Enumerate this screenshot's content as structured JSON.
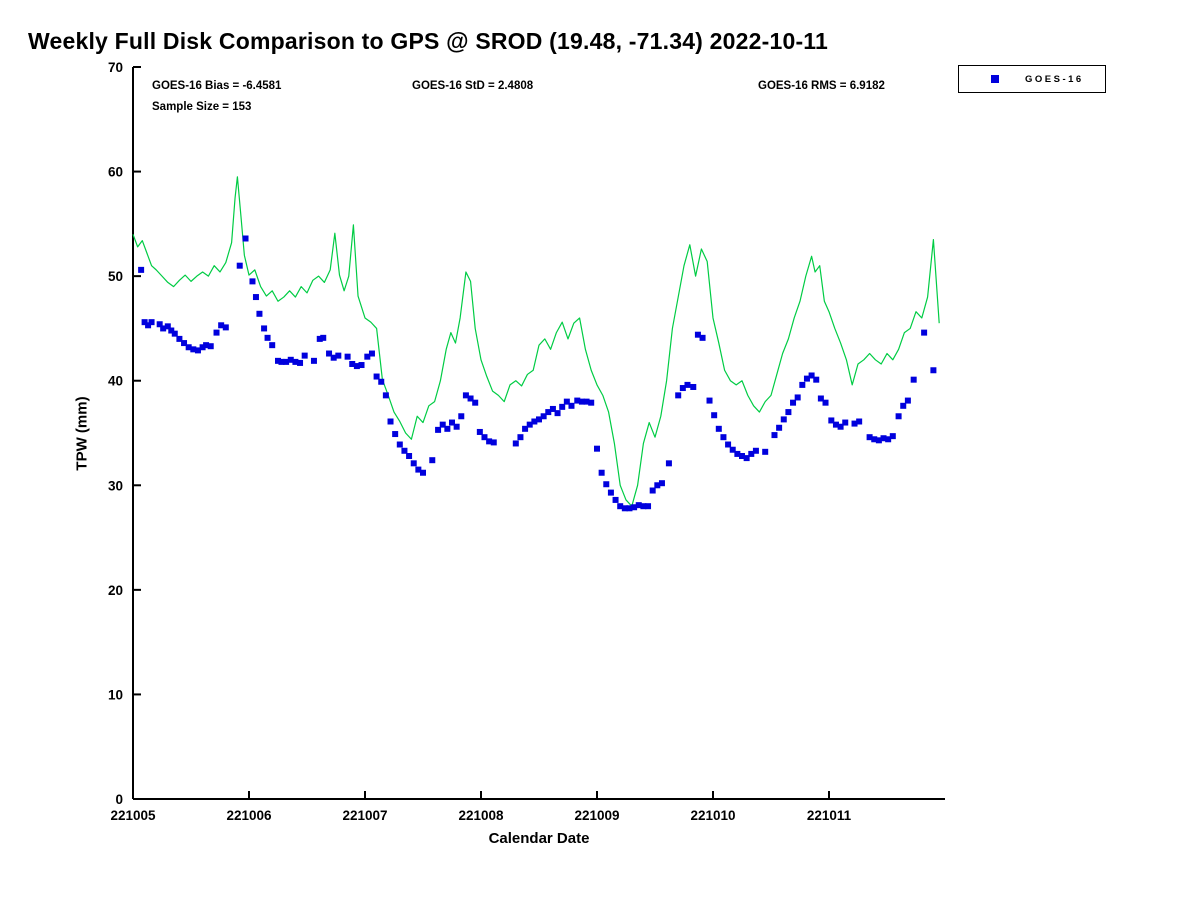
{
  "title": "Weekly Full Disk Comparison to GPS @ SROD (19.48, -71.34) 2022-10-11",
  "annotations": {
    "bias": "GOES-16 Bias = -6.4581",
    "std": "GOES-16 StD = 2.4808",
    "rms": "GOES-16 RMS = 6.9182",
    "sample": "Sample Size = 153"
  },
  "legend": {
    "entries": [
      {
        "label": "GOES-16",
        "marker": "filled-square",
        "marker_color": "#0000dd"
      }
    ],
    "position": "top-right-outside"
  },
  "colors": {
    "gps_line": "#00cc44",
    "goes16_marker": "#0000dd",
    "axis": "#000000",
    "background": "#ffffff"
  },
  "chart_data": {
    "type": "line",
    "title": "Weekly Full Disk Comparison to GPS @ SROD (19.48, -71.34) 2022-10-11",
    "xlabel": "Calendar Date",
    "ylabel": "TPW (mm)",
    "xlim": [
      221005,
      221012
    ],
    "ylim": [
      0,
      70
    ],
    "xticks": [
      221005,
      221006,
      221007,
      221008,
      221009,
      221010,
      221011
    ],
    "yticks": [
      0,
      10,
      20,
      30,
      40,
      50,
      60,
      70
    ],
    "grid": false,
    "legend_position": "top-right-outside",
    "stats": {
      "bias": -6.4581,
      "std": 2.4808,
      "rms": 6.9182,
      "sample_size": 153
    },
    "series": [
      {
        "name": "GPS",
        "type": "line",
        "color": "#00cc44",
        "x": [
          221005.0,
          221005.04,
          221005.08,
          221005.12,
          221005.16,
          221005.2,
          221005.25,
          221005.3,
          221005.35,
          221005.4,
          221005.45,
          221005.5,
          221005.55,
          221005.6,
          221005.65,
          221005.7,
          221005.75,
          221005.8,
          221005.85,
          221005.88,
          221005.9,
          221005.93,
          221005.96,
          221006.0,
          221006.05,
          221006.1,
          221006.15,
          221006.2,
          221006.25,
          221006.3,
          221006.35,
          221006.4,
          221006.45,
          221006.5,
          221006.55,
          221006.6,
          221006.65,
          221006.7,
          221006.74,
          221006.78,
          221006.82,
          221006.86,
          221006.9,
          221006.94,
          221007.0,
          221007.05,
          221007.1,
          221007.15,
          221007.2,
          221007.25,
          221007.3,
          221007.35,
          221007.4,
          221007.45,
          221007.5,
          221007.55,
          221007.6,
          221007.65,
          221007.7,
          221007.74,
          221007.78,
          221007.82,
          221007.87,
          221007.91,
          221007.95,
          221008.0,
          221008.05,
          221008.1,
          221008.15,
          221008.2,
          221008.25,
          221008.3,
          221008.35,
          221008.4,
          221008.45,
          221008.5,
          221008.55,
          221008.6,
          221008.65,
          221008.7,
          221008.75,
          221008.8,
          221008.85,
          221008.9,
          221008.95,
          221009.0,
          221009.05,
          221009.1,
          221009.15,
          221009.2,
          221009.25,
          221009.3,
          221009.35,
          221009.4,
          221009.45,
          221009.5,
          221009.55,
          221009.6,
          221009.65,
          221009.7,
          221009.75,
          221009.8,
          221009.85,
          221009.9,
          221009.95,
          221010.0,
          221010.05,
          221010.1,
          221010.15,
          221010.2,
          221010.25,
          221010.3,
          221010.35,
          221010.4,
          221010.45,
          221010.5,
          221010.55,
          221010.6,
          221010.65,
          221010.7,
          221010.75,
          221010.8,
          221010.85,
          221010.88,
          221010.92,
          221010.96,
          221011.0,
          221011.05,
          221011.1,
          221011.15,
          221011.2,
          221011.25,
          221011.3,
          221011.35,
          221011.4,
          221011.45,
          221011.5,
          221011.55,
          221011.6,
          221011.65,
          221011.7,
          221011.75,
          221011.8,
          221011.85,
          221011.9,
          221011.95
        ],
        "y": [
          54.0,
          52.8,
          53.4,
          52.2,
          51.0,
          50.6,
          50.0,
          49.4,
          49.0,
          49.6,
          50.1,
          49.5,
          50.0,
          50.4,
          50.0,
          51.0,
          50.4,
          51.3,
          53.2,
          57.5,
          59.5,
          55.8,
          52.0,
          50.1,
          50.6,
          49.0,
          48.1,
          48.6,
          47.6,
          48.0,
          48.6,
          48.0,
          49.0,
          48.4,
          49.6,
          50.0,
          49.4,
          50.6,
          54.1,
          50.1,
          48.6,
          50.0,
          54.9,
          48.1,
          46.0,
          45.6,
          45.0,
          40.1,
          38.6,
          37.0,
          36.1,
          35.0,
          34.4,
          36.6,
          36.0,
          37.6,
          38.0,
          40.0,
          43.0,
          44.6,
          43.6,
          46.0,
          50.4,
          49.5,
          45.0,
          42.0,
          40.4,
          39.0,
          38.6,
          38.0,
          39.6,
          40.0,
          39.5,
          40.6,
          41.0,
          43.4,
          44.0,
          43.0,
          44.6,
          45.6,
          44.0,
          45.5,
          46.0,
          43.0,
          41.0,
          39.6,
          38.6,
          37.0,
          34.0,
          30.0,
          28.6,
          28.0,
          30.0,
          34.0,
          36.0,
          34.6,
          36.6,
          40.0,
          45.0,
          48.0,
          51.0,
          53.0,
          50.0,
          52.6,
          51.4,
          46.0,
          43.6,
          41.0,
          40.0,
          39.6,
          40.0,
          38.6,
          37.6,
          37.0,
          38.0,
          38.6,
          40.6,
          42.6,
          44.0,
          46.0,
          47.6,
          50.0,
          51.9,
          50.4,
          51.0,
          47.6,
          46.6,
          45.0,
          43.6,
          42.0,
          39.6,
          41.6,
          42.0,
          42.6,
          42.0,
          41.6,
          42.6,
          42.0,
          43.0,
          44.6,
          45.0,
          46.6,
          46.0,
          48.0,
          53.5,
          45.5
        ]
      },
      {
        "name": "GOES-16",
        "type": "scatter",
        "marker": "square",
        "color": "#0000dd",
        "x": [
          221005.07,
          221005.1,
          221005.13,
          221005.16,
          221005.23,
          221005.26,
          221005.3,
          221005.33,
          221005.36,
          221005.4,
          221005.44,
          221005.48,
          221005.52,
          221005.56,
          221005.6,
          221005.63,
          221005.67,
          221005.72,
          221005.76,
          221005.8,
          221005.92,
          221005.97,
          221006.03,
          221006.06,
          221006.09,
          221006.13,
          221006.16,
          221006.2,
          221006.25,
          221006.28,
          221006.32,
          221006.36,
          221006.4,
          221006.44,
          221006.48,
          221006.56,
          221006.61,
          221006.64,
          221006.69,
          221006.73,
          221006.77,
          221006.85,
          221006.89,
          221006.93,
          221006.97,
          221007.02,
          221007.06,
          221007.1,
          221007.14,
          221007.18,
          221007.22,
          221007.26,
          221007.3,
          221007.34,
          221007.38,
          221007.42,
          221007.46,
          221007.5,
          221007.58,
          221007.63,
          221007.67,
          221007.71,
          221007.75,
          221007.79,
          221007.83,
          221007.87,
          221007.91,
          221007.95,
          221007.99,
          221008.03,
          221008.07,
          221008.11,
          221008.3,
          221008.34,
          221008.38,
          221008.42,
          221008.46,
          221008.5,
          221008.54,
          221008.58,
          221008.62,
          221008.66,
          221008.7,
          221008.74,
          221008.78,
          221008.83,
          221008.87,
          221008.91,
          221008.95,
          221009.0,
          221009.04,
          221009.08,
          221009.12,
          221009.16,
          221009.2,
          221009.24,
          221009.28,
          221009.32,
          221009.36,
          221009.4,
          221009.44,
          221009.48,
          221009.52,
          221009.56,
          221009.62,
          221009.7,
          221009.74,
          221009.78,
          221009.83,
          221009.87,
          221009.91,
          221009.97,
          221010.01,
          221010.05,
          221010.09,
          221010.13,
          221010.17,
          221010.21,
          221010.25,
          221010.29,
          221010.33,
          221010.37,
          221010.45,
          221010.53,
          221010.57,
          221010.61,
          221010.65,
          221010.69,
          221010.73,
          221010.77,
          221010.81,
          221010.85,
          221010.89,
          221010.93,
          221010.97,
          221011.02,
          221011.06,
          221011.1,
          221011.14,
          221011.22,
          221011.26,
          221011.35,
          221011.39,
          221011.43,
          221011.47,
          221011.51,
          221011.55,
          221011.6,
          221011.64,
          221011.68,
          221011.73,
          221011.82,
          221011.9
        ],
        "y": [
          50.6,
          45.6,
          45.3,
          45.6,
          45.4,
          45.0,
          45.2,
          44.8,
          44.5,
          44.0,
          43.6,
          43.2,
          43.0,
          42.9,
          43.2,
          43.4,
          43.3,
          44.6,
          45.3,
          45.1,
          51.0,
          53.6,
          49.5,
          48.0,
          46.4,
          45.0,
          44.1,
          43.4,
          41.9,
          41.8,
          41.8,
          42.0,
          41.8,
          41.7,
          42.4,
          41.9,
          44.0,
          44.1,
          42.6,
          42.2,
          42.4,
          42.3,
          41.6,
          41.4,
          41.5,
          42.3,
          42.6,
          40.4,
          39.9,
          38.6,
          36.1,
          34.9,
          33.9,
          33.3,
          32.8,
          32.1,
          31.5,
          31.2,
          32.4,
          35.3,
          35.8,
          35.4,
          36.0,
          35.6,
          36.6,
          38.6,
          38.3,
          37.9,
          35.1,
          34.6,
          34.2,
          34.1,
          34.0,
          34.6,
          35.4,
          35.8,
          36.1,
          36.3,
          36.6,
          37.0,
          37.3,
          36.9,
          37.5,
          38.0,
          37.6,
          38.1,
          38.0,
          38.0,
          37.9,
          33.5,
          31.2,
          30.1,
          29.3,
          28.6,
          28.0,
          27.8,
          27.8,
          27.9,
          28.1,
          28.0,
          28.0,
          29.5,
          30.0,
          30.2,
          32.1,
          38.6,
          39.3,
          39.6,
          39.4,
          44.4,
          44.1,
          38.1,
          36.7,
          35.4,
          34.6,
          33.9,
          33.4,
          33.0,
          32.8,
          32.6,
          33.0,
          33.3,
          33.2,
          34.8,
          35.5,
          36.3,
          37.0,
          37.9,
          38.4,
          39.6,
          40.2,
          40.5,
          40.1,
          38.3,
          37.9,
          36.2,
          35.8,
          35.6,
          36.0,
          35.9,
          36.1,
          34.6,
          34.4,
          34.3,
          34.5,
          34.4,
          34.7,
          36.6,
          37.6,
          38.1,
          40.1,
          44.6,
          41.0
        ]
      }
    ]
  }
}
